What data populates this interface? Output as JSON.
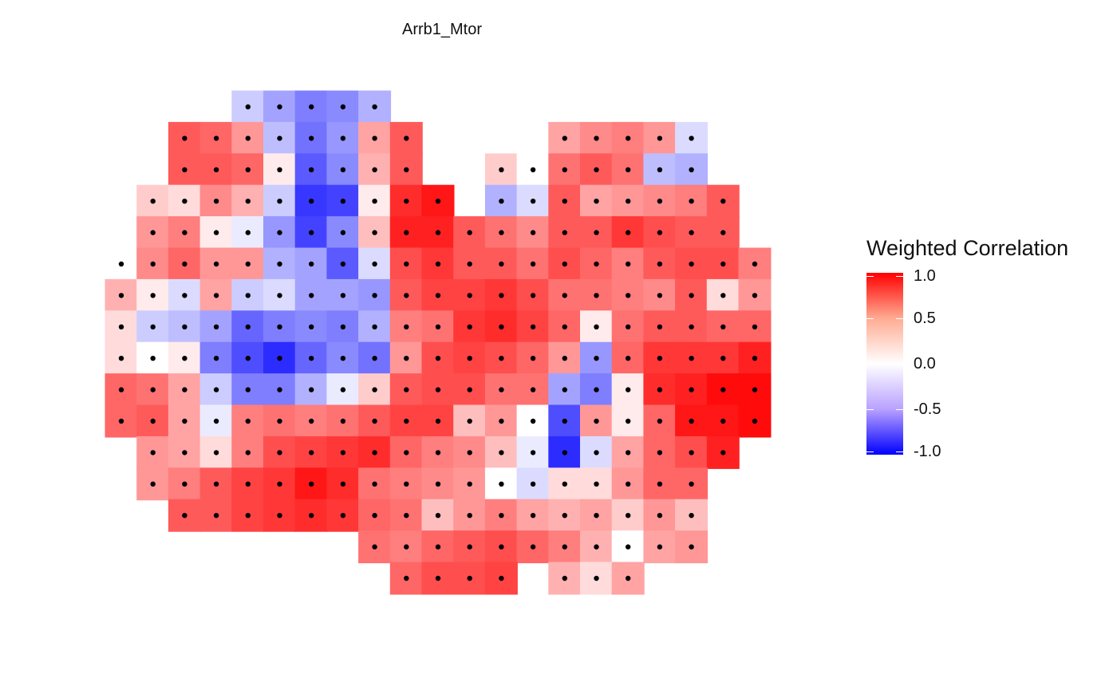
{
  "chart_data": {
    "type": "heatmap",
    "title": "Arrb1_Mtor",
    "legend": {
      "title": "Weighted Correlation",
      "placement": "right",
      "ticks": [
        "1.0",
        "0.5",
        "0.0",
        "-0.5",
        "-1.0"
      ],
      "tick_values": [
        1.0,
        0.5,
        0.0,
        -0.5,
        -1.0
      ],
      "colors": {
        "low": "#0000ff",
        "mid": "#ffffff",
        "high": "#ff0000"
      }
    },
    "value_range": [
      -1.0,
      1.0
    ],
    "grid": false,
    "rows": [
      {
        "row": 0,
        "values": [
          null,
          null,
          null,
          null,
          -0.15,
          -0.3,
          -0.45,
          -0.4,
          -0.25,
          null,
          null,
          null,
          null,
          null,
          null,
          null,
          null,
          null,
          null,
          null,
          null,
          null
        ]
      },
      {
        "row": 1,
        "values": [
          null,
          null,
          0.6,
          0.55,
          0.35,
          -0.2,
          -0.5,
          -0.35,
          0.3,
          0.6,
          null,
          null,
          null,
          null,
          0.3,
          0.4,
          0.45,
          0.35,
          -0.1,
          null,
          null,
          null
        ]
      },
      {
        "row": 2,
        "values": [
          null,
          null,
          0.6,
          0.6,
          0.55,
          0.05,
          -0.6,
          -0.4,
          0.25,
          0.6,
          null,
          null,
          0.15,
          0.0,
          0.5,
          0.6,
          0.5,
          -0.2,
          -0.25,
          null,
          null,
          null
        ]
      },
      {
        "row": 3,
        "values": [
          null,
          0.15,
          0.1,
          0.4,
          0.25,
          -0.15,
          -0.75,
          -0.7,
          0.05,
          0.8,
          0.9,
          null,
          -0.25,
          -0.1,
          0.6,
          0.3,
          0.35,
          0.4,
          0.45,
          0.6,
          null,
          null
        ]
      },
      {
        "row": 4,
        "values": [
          null,
          0.35,
          0.45,
          0.05,
          -0.05,
          -0.35,
          -0.7,
          -0.4,
          0.2,
          0.85,
          0.85,
          0.6,
          0.5,
          0.4,
          0.6,
          0.6,
          0.75,
          0.65,
          0.6,
          0.6,
          null,
          null
        ]
      },
      {
        "row": 5,
        "values": [
          0.0,
          0.4,
          0.55,
          0.35,
          0.35,
          -0.25,
          -0.3,
          -0.6,
          -0.1,
          0.65,
          0.75,
          0.6,
          0.6,
          0.5,
          0.65,
          0.55,
          0.45,
          0.6,
          0.65,
          0.65,
          0.45,
          null
        ]
      },
      {
        "row": 6,
        "values": [
          0.25,
          0.05,
          -0.1,
          0.3,
          -0.15,
          -0.1,
          -0.3,
          -0.3,
          -0.35,
          0.6,
          0.7,
          0.7,
          0.75,
          0.65,
          0.5,
          0.5,
          0.45,
          0.4,
          0.6,
          0.1,
          0.35,
          null
        ]
      },
      {
        "row": 7,
        "values": [
          0.1,
          -0.15,
          -0.2,
          -0.3,
          -0.55,
          -0.45,
          -0.4,
          -0.45,
          -0.25,
          0.45,
          0.5,
          0.75,
          0.8,
          0.7,
          0.55,
          0.05,
          0.5,
          0.6,
          0.6,
          0.55,
          0.55,
          null
        ]
      },
      {
        "row": 8,
        "values": [
          0.1,
          0.0,
          0.05,
          -0.45,
          -0.65,
          -0.8,
          -0.55,
          -0.4,
          -0.5,
          0.35,
          0.65,
          0.7,
          0.65,
          0.55,
          0.35,
          -0.35,
          0.55,
          0.75,
          0.75,
          0.75,
          0.85,
          null
        ]
      },
      {
        "row": 9,
        "values": [
          0.55,
          0.5,
          0.3,
          -0.15,
          -0.45,
          -0.45,
          -0.25,
          -0.05,
          0.15,
          0.6,
          0.65,
          0.65,
          0.5,
          0.5,
          -0.3,
          -0.45,
          0.05,
          0.8,
          0.85,
          0.95,
          0.95,
          null
        ]
      },
      {
        "row": 10,
        "values": [
          0.55,
          0.6,
          0.3,
          -0.05,
          0.45,
          0.5,
          0.45,
          0.5,
          0.6,
          0.7,
          0.7,
          0.2,
          0.35,
          0.0,
          -0.65,
          0.35,
          0.05,
          0.55,
          0.9,
          0.9,
          0.95,
          null
        ]
      },
      {
        "row": 11,
        "values": [
          null,
          0.35,
          0.3,
          0.1,
          0.45,
          0.65,
          0.7,
          0.75,
          0.8,
          0.55,
          0.45,
          0.4,
          0.2,
          -0.05,
          -0.8,
          -0.1,
          0.3,
          0.55,
          0.65,
          0.85,
          null,
          null
        ]
      },
      {
        "row": 12,
        "values": [
          null,
          0.35,
          0.45,
          0.6,
          0.7,
          0.75,
          0.9,
          0.8,
          0.5,
          0.45,
          0.4,
          0.35,
          0.0,
          -0.1,
          0.1,
          0.1,
          0.35,
          0.55,
          0.55,
          null,
          null,
          null
        ]
      },
      {
        "row": 13,
        "values": [
          null,
          null,
          0.6,
          0.6,
          0.7,
          0.75,
          0.8,
          0.75,
          0.55,
          0.5,
          0.2,
          0.35,
          0.45,
          0.3,
          0.25,
          0.3,
          0.15,
          0.35,
          0.2,
          null,
          null,
          null
        ]
      },
      {
        "row": 14,
        "values": [
          null,
          null,
          null,
          null,
          null,
          null,
          null,
          null,
          0.5,
          0.45,
          0.55,
          0.6,
          0.65,
          0.55,
          0.45,
          0.25,
          0.0,
          0.3,
          0.35,
          null,
          null,
          null
        ]
      },
      {
        "row": 15,
        "values": [
          null,
          null,
          null,
          null,
          null,
          null,
          null,
          null,
          null,
          0.55,
          0.65,
          0.65,
          0.7,
          null,
          0.25,
          0.1,
          0.3,
          null,
          null,
          null,
          null,
          null
        ]
      }
    ]
  }
}
